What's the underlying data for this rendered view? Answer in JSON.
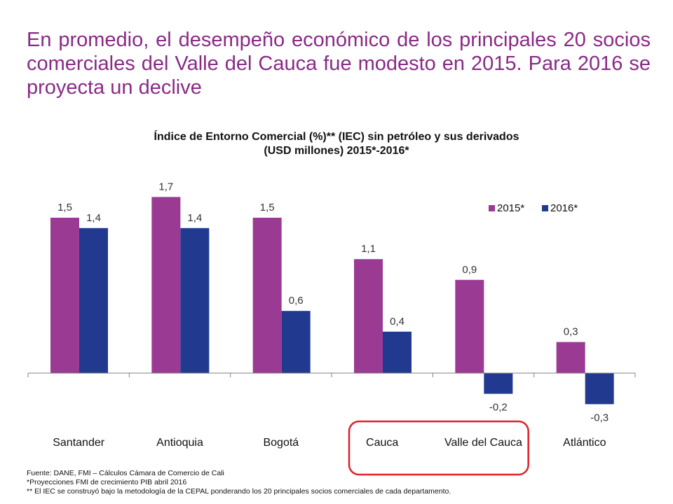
{
  "headline": "En promedio, el desempeño económico de los principales 20 socios comerciales del Valle del Cauca fue modesto en 2015. Para 2016 se proyecta un declive",
  "chart_data": {
    "type": "bar",
    "title_line1": "Índice de Entorno Comercial (%)** (IEC) sin petróleo y sus derivados",
    "title_line2": "(USD millones) 2015*-2016*",
    "categories": [
      "Santander",
      "Antioquia",
      "Bogotá",
      "Cauca",
      "Valle del Cauca",
      "Atlántico"
    ],
    "series": [
      {
        "name": "2015*",
        "values": [
          1.5,
          1.7,
          1.5,
          1.1,
          0.9,
          0.3
        ],
        "labels": [
          "1,5",
          "1,7",
          "1,5",
          "1,1",
          "0,9",
          "0,3"
        ],
        "color": "#9b3a93"
      },
      {
        "name": "2016*",
        "values": [
          1.4,
          1.4,
          0.6,
          0.4,
          -0.2,
          -0.3
        ],
        "labels": [
          "1,4",
          "1,4",
          "0,6",
          "0,4",
          "-0,2",
          "-0,3"
        ],
        "color": "#213a8f"
      }
    ],
    "legend_position": "top-right",
    "grid": false,
    "highlight": {
      "categories": [
        "Cauca",
        "Valle del Cauca"
      ],
      "color": "#e0202a"
    }
  },
  "footnotes": [
    "Fuente: DANE, FMI – Cálculos Cámara de Comercio de Cali",
    "*Proyecciones FMI de crecimiento PIB  abril 2016",
    "** El IEC se construyó bajo la metodología de la CEPAL ponderando los 20 principales socios comerciales de cada departamento."
  ]
}
